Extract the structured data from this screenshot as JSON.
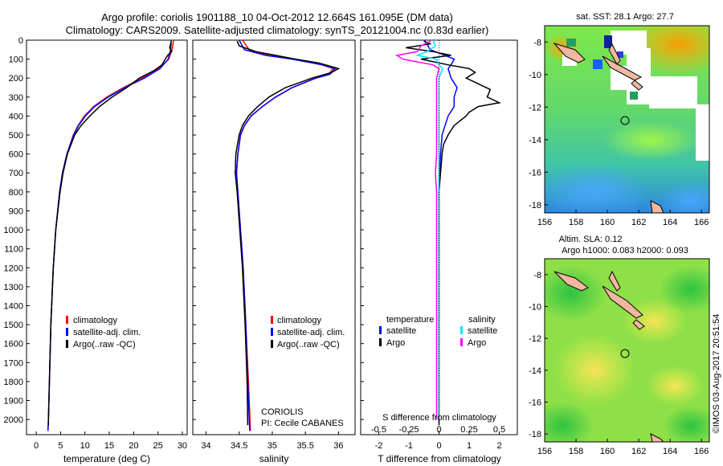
{
  "header": {
    "line1": "Argo profile: coriolis 1901188_10 04-Oct-2012 12.664S 161.095E (DM data)",
    "line2": "Climatology: CARS2009. Satellite-adjusted climatology: synTS_20121004.nc (0.83d earlier)"
  },
  "colors": {
    "climatology": "#ff0000",
    "satellite": "#0000ff",
    "argo": "#000000",
    "salinity_satellite": "#00e5ff",
    "salinity_argo": "#ff00ff"
  },
  "chart_data": [
    {
      "name": "temperature",
      "type": "line",
      "xlabel": "temperature (deg C)",
      "ylabel": "",
      "xlim": [
        -2,
        31
      ],
      "ylim": [
        2080,
        0
      ],
      "xticks": [
        "0",
        "5",
        "10",
        "15",
        "20",
        "25",
        "30"
      ],
      "xtick_values": [
        0,
        5,
        10,
        15,
        20,
        25,
        30
      ],
      "ytick_values": [
        0,
        100,
        200,
        300,
        400,
        500,
        600,
        700,
        800,
        900,
        1000,
        1100,
        1200,
        1300,
        1400,
        1500,
        1600,
        1700,
        1800,
        1900,
        2000
      ],
      "yticks": [
        "0",
        "100",
        "200",
        "300",
        "400",
        "500",
        "600",
        "700",
        "800",
        "900",
        "1000",
        "1100",
        "1200",
        "1300",
        "1400",
        "1500",
        "1600",
        "1700",
        "1800",
        "1900",
        "2000"
      ],
      "legend": [
        "climatology",
        "satellite-adj. clim.",
        "Argo(..raw -QC)"
      ],
      "series": [
        {
          "name": "climatology",
          "color": "#ff0000",
          "depth": [
            0,
            20,
            50,
            100,
            150,
            200,
            250,
            300,
            350,
            400,
            450,
            500,
            600,
            700,
            800,
            1000,
            1200,
            1500,
            1800,
            2000,
            2060
          ],
          "values": [
            28.2,
            28.1,
            27.9,
            27.2,
            25.2,
            21.8,
            17.9,
            14.5,
            11.8,
            9.9,
            8.6,
            7.6,
            6.3,
            5.4,
            4.8,
            4.0,
            3.5,
            3.0,
            2.7,
            2.5,
            2.4
          ]
        },
        {
          "name": "satellite-adj. clim.",
          "color": "#0000ff",
          "depth": [
            0,
            20,
            50,
            100,
            150,
            200,
            250,
            300,
            350,
            400,
            450,
            500,
            600,
            700,
            800,
            1000,
            1200,
            1500,
            1800,
            2000,
            2060
          ],
          "values": [
            27.7,
            27.7,
            27.6,
            27.1,
            25.4,
            22.2,
            18.2,
            14.8,
            12.0,
            10.1,
            8.7,
            7.7,
            6.3,
            5.4,
            4.8,
            4.0,
            3.5,
            3.0,
            2.7,
            2.5,
            2.4
          ]
        },
        {
          "name": "Argo(..raw -QC)",
          "color": "#000000",
          "depth": [
            5,
            20,
            40,
            60,
            80,
            100,
            130,
            160,
            200,
            250,
            300,
            350,
            400,
            450,
            500,
            600,
            700,
            800,
            1000,
            1200,
            1500,
            1800,
            2000,
            2030
          ],
          "values": [
            27.7,
            27.6,
            27.4,
            27.8,
            27.0,
            26.5,
            25.8,
            24.2,
            21.2,
            18.6,
            15.6,
            13.0,
            11.0,
            9.2,
            7.9,
            6.4,
            5.5,
            4.9,
            4.0,
            3.5,
            3.0,
            2.7,
            2.5,
            2.5
          ]
        }
      ]
    },
    {
      "name": "salinity",
      "type": "line",
      "xlabel": "salinity",
      "xlim": [
        33.8,
        36.25
      ],
      "ylim": [
        2080,
        0
      ],
      "xticks": [
        "34",
        "34.5",
        "35",
        "35.5",
        "36"
      ],
      "xtick_values": [
        34,
        34.5,
        35,
        35.5,
        36
      ],
      "legend": [
        "climatology",
        "satellite-adj. clim.",
        "Argo(..raw -QC)"
      ],
      "annotation": [
        "CORIOLIS",
        "PI: Cecile CABANES"
      ],
      "series": [
        {
          "name": "climatology",
          "color": "#ff0000",
          "depth": [
            0,
            50,
            80,
            100,
            130,
            150,
            180,
            200,
            250,
            300,
            350,
            400,
            450,
            500,
            600,
            700,
            800,
            1000,
            1200,
            1500,
            1800,
            2060
          ],
          "values": [
            34.55,
            34.65,
            34.95,
            35.35,
            35.75,
            35.92,
            35.85,
            35.65,
            35.3,
            35.05,
            34.85,
            34.68,
            34.58,
            34.52,
            34.48,
            34.46,
            34.48,
            34.52,
            34.56,
            34.6,
            34.64,
            34.67
          ]
        },
        {
          "name": "satellite-adj. clim.",
          "color": "#0000ff",
          "depth": [
            0,
            50,
            80,
            100,
            130,
            150,
            180,
            200,
            250,
            300,
            350,
            400,
            450,
            500,
            600,
            700,
            800,
            1000,
            1200,
            1500,
            1800,
            2060
          ],
          "values": [
            34.5,
            34.58,
            34.9,
            35.3,
            35.75,
            35.95,
            35.87,
            35.66,
            35.3,
            35.05,
            34.85,
            34.68,
            34.58,
            34.52,
            34.48,
            34.46,
            34.48,
            34.52,
            34.56,
            34.6,
            34.63,
            34.66
          ]
        },
        {
          "name": "Argo(..raw -QC)",
          "color": "#000000",
          "depth": [
            5,
            30,
            60,
            80,
            100,
            120,
            150,
            170,
            200,
            250,
            300,
            350,
            400,
            450,
            500,
            600,
            700,
            800,
            1000,
            1200,
            1500,
            1800,
            2030
          ],
          "values": [
            34.47,
            34.5,
            34.75,
            35.05,
            35.35,
            35.7,
            36.0,
            35.9,
            35.6,
            35.2,
            34.95,
            34.78,
            34.64,
            34.55,
            34.5,
            34.45,
            34.44,
            34.47,
            34.51,
            34.55,
            34.59,
            34.62,
            34.63
          ]
        }
      ]
    },
    {
      "name": "difference",
      "type": "line",
      "xlabel": "T difference from climatology",
      "xlabel_top": "S difference from climatology",
      "xlim": [
        -2.6,
        2.6
      ],
      "ylim": [
        2080,
        0
      ],
      "xticks": [
        "-2",
        "-1",
        "0",
        "1",
        "2"
      ],
      "xtick_values": [
        -2,
        -1,
        0,
        1,
        2
      ],
      "s_ticks": [
        "-0.5",
        "-0.25",
        "0",
        "0.25",
        "0.5"
      ],
      "s_tick_values": [
        -0.5,
        -0.25,
        0,
        0.25,
        0.5
      ],
      "legend_temperature": {
        "title": "temperature",
        "items": [
          "satellite",
          "Argo"
        ]
      },
      "legend_salinity": {
        "title": "salinity",
        "items": [
          "satellite",
          "Argo"
        ]
      },
      "series": [
        {
          "name": "T satellite",
          "color": "#0000ff",
          "depth": [
            0,
            20,
            50,
            80,
            100,
            130,
            150,
            200,
            250,
            300,
            350,
            400,
            450,
            500,
            600,
            800,
            1000,
            1500,
            2000
          ],
          "values": [
            -0.5,
            -0.4,
            -0.3,
            0.2,
            0.5,
            0.4,
            0.3,
            0.4,
            0.6,
            0.5,
            0.5,
            0.3,
            0.2,
            0.1,
            0.05,
            0.0,
            0.0,
            0.0,
            0.0
          ]
        },
        {
          "name": "T Argo",
          "color": "#000000",
          "depth": [
            5,
            20,
            40,
            60,
            80,
            100,
            130,
            150,
            170,
            200,
            230,
            260,
            300,
            330,
            350,
            380,
            400,
            450,
            500,
            550,
            600,
            700,
            800,
            1000,
            1200,
            1500,
            1800,
            2030
          ],
          "values": [
            -0.5,
            -0.3,
            -1.1,
            -0.2,
            0.4,
            -0.6,
            0.3,
            1.0,
            1.2,
            0.9,
            1.3,
            1.7,
            1.6,
            2.0,
            1.3,
            1.0,
            0.9,
            0.5,
            0.3,
            0.15,
            0.1,
            0.05,
            0.0,
            0.0,
            0.0,
            0.0,
            0.0,
            0.0
          ]
        },
        {
          "name": "S satellite",
          "color": "#00e5ff",
          "depth": [
            0,
            30,
            60,
            80,
            100,
            130,
            150,
            200,
            250,
            300,
            400,
            500,
            600,
            800,
            1000,
            1500,
            2000
          ],
          "values": [
            -0.05,
            -0.03,
            -0.1,
            -0.18,
            -0.02,
            0.0,
            0.03,
            0.0,
            0.0,
            0.0,
            0.0,
            0.0,
            0.0,
            0.0,
            0.0,
            0.0,
            0.0
          ]
        },
        {
          "name": "S Argo",
          "color": "#ff00ff",
          "depth": [
            5,
            30,
            60,
            80,
            100,
            130,
            150,
            200,
            250,
            300,
            400,
            500,
            600,
            700,
            800,
            1000,
            1500,
            2000
          ],
          "values": [
            -0.07,
            -0.15,
            -0.18,
            -0.35,
            -0.3,
            -0.05,
            0.0,
            -0.02,
            -0.02,
            -0.02,
            -0.02,
            -0.02,
            -0.02,
            -0.03,
            -0.02,
            -0.02,
            -0.02,
            -0.02
          ]
        }
      ]
    },
    {
      "name": "sst_map",
      "type": "heatmap",
      "title": "sat. SST: 28.1  Argo: 27.7",
      "xticks": [
        "156",
        "158",
        "160",
        "162",
        "164",
        "166"
      ],
      "xtick_values": [
        156,
        158,
        160,
        162,
        164,
        166
      ],
      "yticks": [
        "-8",
        "-10",
        "-12",
        "-14",
        "-16",
        "-18"
      ],
      "ytick_values": [
        -8,
        -10,
        -12,
        -14,
        -16,
        -18
      ],
      "xlim": [
        156,
        166.5
      ],
      "ylim": [
        -18.5,
        -7.0
      ],
      "marker": {
        "lon": 161.095,
        "lat": -12.664
      }
    },
    {
      "name": "sla_map",
      "type": "heatmap",
      "title": "Altim. SLA: 0.12",
      "subtitle": "Argo h1000: 0.083 h2000: 0.093",
      "xticks": [
        "156",
        "158",
        "160",
        "162",
        "164",
        "166"
      ],
      "xtick_values": [
        156,
        158,
        160,
        162,
        164,
        166
      ],
      "yticks": [
        "-8",
        "-10",
        "-12",
        "-14",
        "-16",
        "-18"
      ],
      "ytick_values": [
        -8,
        -10,
        -12,
        -14,
        -16,
        -18
      ],
      "xlim": [
        156,
        166.5
      ],
      "ylim": [
        -18.5,
        -7.0
      ],
      "marker": {
        "lon": 161.095,
        "lat": -12.664
      }
    }
  ],
  "footer": {
    "credit": "©IMOS 03-Aug-2017 20:51:54"
  }
}
